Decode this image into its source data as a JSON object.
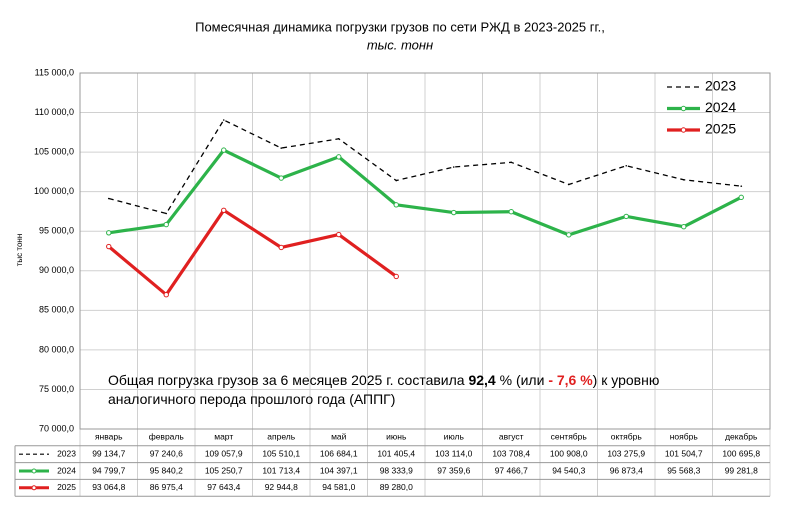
{
  "chart_data": {
    "type": "line",
    "title": "Помесячная динамика  погрузки грузов по сети РЖД в 2023-2025 гг.,",
    "subtitle": "тыс. тонн",
    "y_label": "тыс тонн",
    "annotation_lines": [
      [
        "Общая погрузка грузов за 6 месяцев 2025 г. составила ",
        "92,4",
        " % (или ",
        "- 7,6 %",
        ") к уровню"
      ],
      [
        "аналогичного перода прошлого года (АППГ)"
      ]
    ],
    "categories": [
      "январь",
      "февраль",
      "март",
      "апрель",
      "май",
      "июнь",
      "июль",
      "август",
      "сентябрь",
      "октябрь",
      "ноябрь",
      "декабрь"
    ],
    "series": [
      {
        "name": "2023",
        "color": "#000000",
        "dashed": true,
        "markers": false,
        "values": [
          99134.7,
          97240.6,
          109057.9,
          105510.1,
          106684.1,
          101405.4,
          103114.0,
          103708.4,
          100908.0,
          103275.9,
          101504.7,
          100695.8
        ],
        "value_labels": [
          "99 134,7",
          "97 240,6",
          "109 057,9",
          "105 510,1",
          "106 684,1",
          "101 405,4",
          "103 114,0",
          "103 708,4",
          "100 908,0",
          "103 275,9",
          "101 504,7",
          "100 695,8"
        ]
      },
      {
        "name": "2024",
        "color": "#2db34a",
        "dashed": false,
        "markers": true,
        "values": [
          94799.7,
          95840.2,
          105250.7,
          101713.4,
          104397.1,
          98333.9,
          97359.6,
          97466.7,
          94540.3,
          96873.4,
          95568.3,
          99281.8
        ],
        "value_labels": [
          "94 799,7",
          "95 840,2",
          "105 250,7",
          "101 713,4",
          "104 397,1",
          "98 333,9",
          "97 359,6",
          "97 466,7",
          "94 540,3",
          "96 873,4",
          "95 568,3",
          "99 281,8"
        ]
      },
      {
        "name": "2025",
        "color": "#e02020",
        "dashed": false,
        "markers": true,
        "values": [
          93064.8,
          86975.4,
          97643.4,
          92944.8,
          94581.0,
          89280.0,
          null,
          null,
          null,
          null,
          null,
          null
        ],
        "value_labels": [
          "93 064,8",
          "86 975,4",
          "97 643,4",
          "92 944,8",
          "94 581,0",
          "89 280,0",
          null,
          null,
          null,
          null,
          null,
          null
        ]
      }
    ],
    "ylim": [
      70000,
      115000
    ],
    "yticks": [
      {
        "value": 70000,
        "label": "70 000,0"
      },
      {
        "value": 75000,
        "label": "75 000,0"
      },
      {
        "value": 80000,
        "label": "80 000,0"
      },
      {
        "value": 85000,
        "label": "85 000,0"
      },
      {
        "value": 90000,
        "label": "90 000,0"
      },
      {
        "value": 95000,
        "label": "95 000,0"
      },
      {
        "value": 100000,
        "label": "100 000,0"
      },
      {
        "value": 105000,
        "label": "105 000,0"
      },
      {
        "value": 110000,
        "label": "110 000,0"
      },
      {
        "value": 115000,
        "label": "115 000,0"
      }
    ],
    "grid": true,
    "legend": "upper right"
  }
}
